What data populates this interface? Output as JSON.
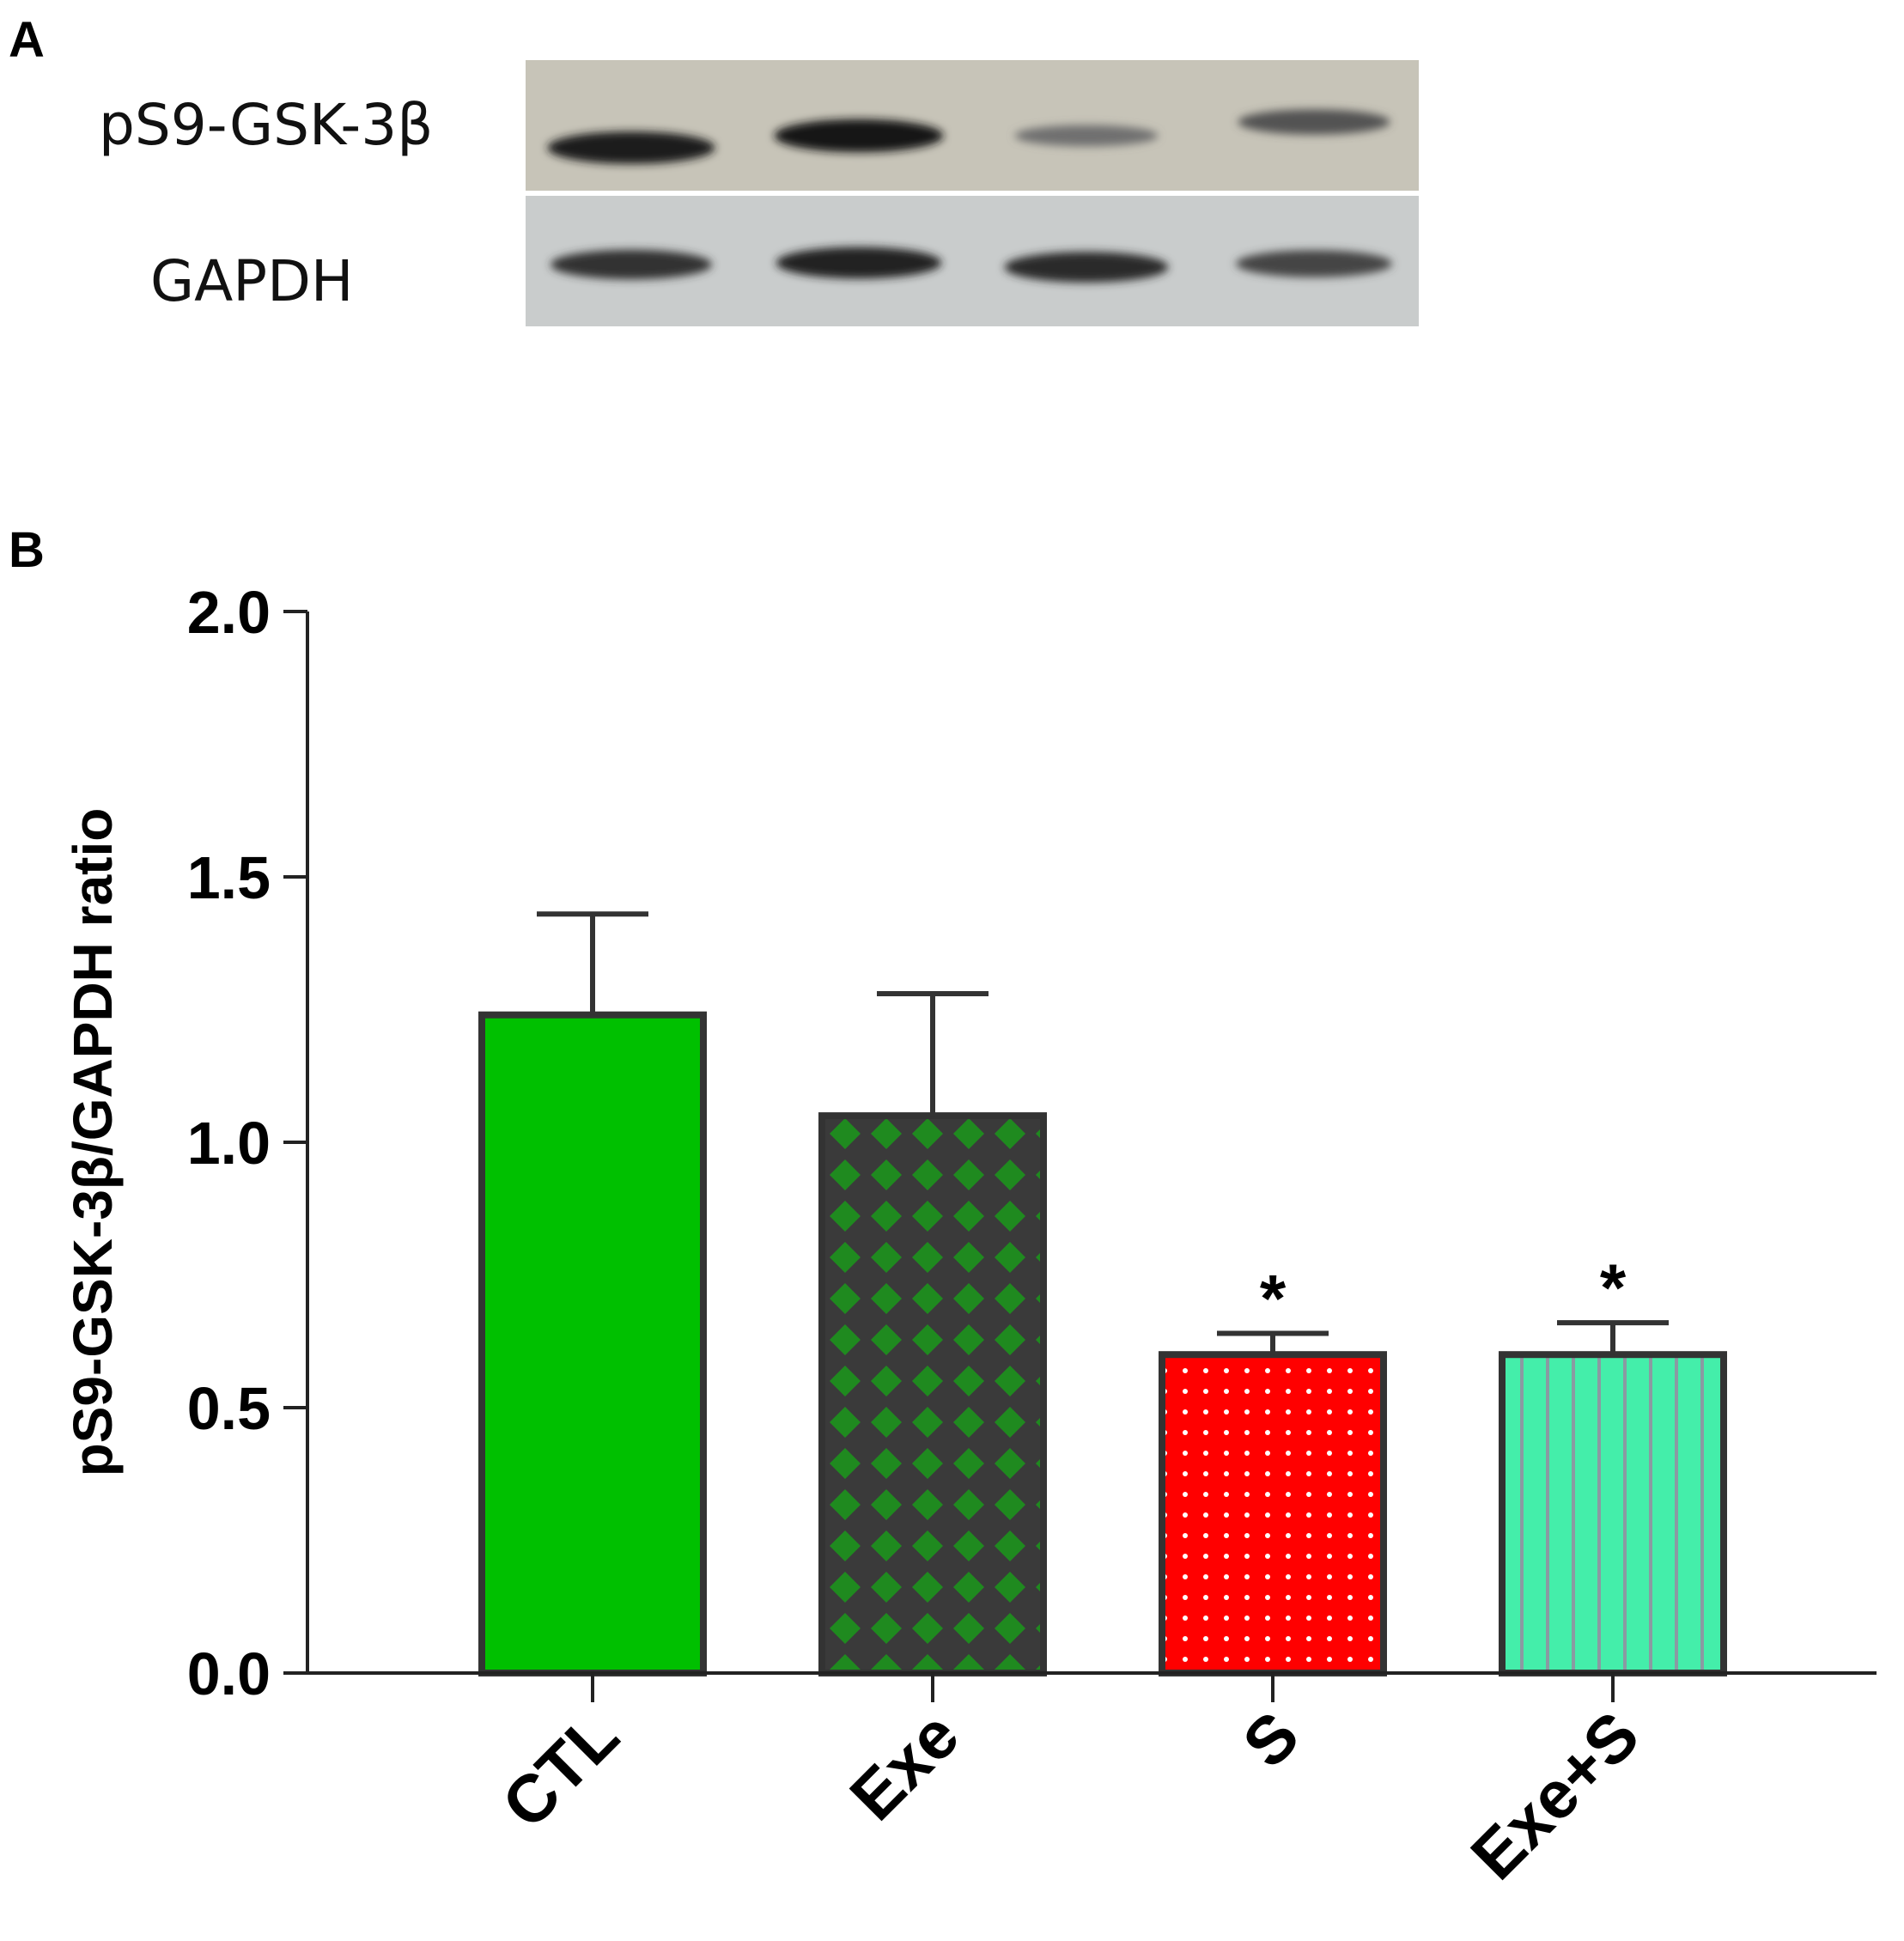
{
  "panel_a": {
    "letter": "A",
    "rows": [
      {
        "label": "pS9-GSK-3β",
        "intensities": [
          0.92,
          0.95,
          0.45,
          0.62
        ]
      },
      {
        "label": "GAPDH",
        "intensities": [
          0.8,
          0.88,
          0.85,
          0.7
        ]
      }
    ]
  },
  "panel_b": {
    "letter": "B"
  },
  "chart_data": {
    "type": "bar",
    "title": "",
    "xlabel": "",
    "ylabel": "pS9-GSK-3β/GAPDH ratio",
    "ylim": [
      0,
      2.0
    ],
    "yticks": [
      "0.0",
      "0.5",
      "1.0",
      "1.5",
      "2.0"
    ],
    "grid": false,
    "legend": "none",
    "categories": [
      "CTL",
      "Exe",
      "S",
      "Exe+S"
    ],
    "values": [
      1.24,
      1.05,
      0.6,
      0.6
    ],
    "errors": [
      0.19,
      0.23,
      0.04,
      0.06
    ],
    "significance": [
      "",
      "",
      "*",
      "*"
    ],
    "fill_colors": [
      "#00c000",
      "#1f8a1f",
      "#ff0000",
      "#44eeaa"
    ],
    "patterns": [
      "solid",
      "diamond-lattice",
      "dots",
      "vertical-stripes"
    ]
  }
}
